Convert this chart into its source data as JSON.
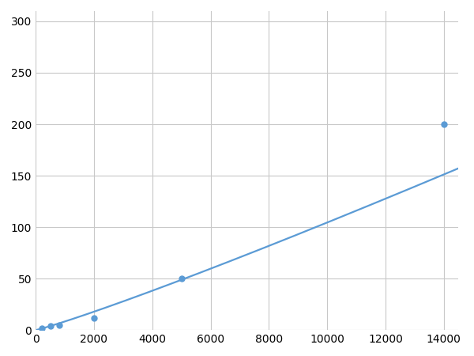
{
  "x_points": [
    200,
    500,
    800,
    2000,
    5000,
    14000
  ],
  "y_points": [
    2,
    4,
    5,
    12,
    50,
    200
  ],
  "xlim": [
    0,
    14500
  ],
  "ylim": [
    0,
    310
  ],
  "xticks": [
    0,
    2000,
    4000,
    6000,
    8000,
    10000,
    12000,
    14000
  ],
  "yticks": [
    0,
    50,
    100,
    150,
    200,
    250,
    300
  ],
  "line_color": "#5b9bd5",
  "marker_color": "#5b9bd5",
  "marker_size": 5,
  "line_width": 1.6,
  "grid_color": "#c8c8c8",
  "background_color": "#ffffff",
  "tick_label_fontsize": 10
}
